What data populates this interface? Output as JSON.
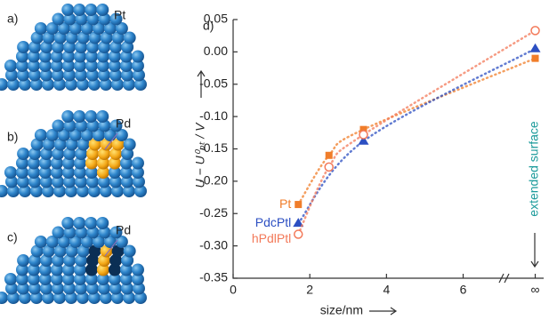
{
  "panels": {
    "a": "a)",
    "b": "b)",
    "c": "c)",
    "d": "d)",
    "a_label": "Pt",
    "b_label": "Pd",
    "c_label": "Pd"
  },
  "chart_data": {
    "type": "line",
    "y_label": "U − U⁰ₚₜ / V",
    "x_label": "size/nm",
    "annotation": "extended surface",
    "xlim": [
      0,
      8.1
    ],
    "ylim": [
      -0.35,
      0.05
    ],
    "xticks": [
      0,
      2,
      4,
      6,
      {
        "value": 7.88,
        "label": "∞"
      }
    ],
    "yticks": [
      {
        "value": 0.05,
        "label": "0.05"
      },
      {
        "value": 0,
        "label": "0.00"
      },
      {
        "value": -0.05,
        "label": "-0.05"
      },
      {
        "value": -0.1,
        "label": "-0.10"
      },
      {
        "value": -0.15,
        "label": "-0.15"
      },
      {
        "value": -0.2,
        "label": "-0.20"
      },
      {
        "value": -0.25,
        "label": "-0.25"
      },
      {
        "value": -0.3,
        "label": "-0.30"
      },
      {
        "value": -0.35,
        "label": "-0.35"
      }
    ],
    "series": [
      {
        "name": "Pt",
        "color": "#f07d2a",
        "marker": "square",
        "x": [
          1.7,
          2.5,
          3.4,
          7.88
        ],
        "values": [
          -0.236,
          -0.16,
          -0.12,
          -0.01
        ]
      },
      {
        "name": "PdcPtl",
        "color": "#2c4fc2",
        "marker": "triangle",
        "x": [
          1.7,
          3.4,
          7.88
        ],
        "values": [
          -0.265,
          -0.138,
          0.005
        ]
      },
      {
        "name": "hPdlPtl",
        "color": "#f37a5a",
        "marker": "circle",
        "x": [
          1.7,
          2.5,
          3.4,
          7.88
        ],
        "values": [
          -0.282,
          -0.178,
          -0.128,
          0.033
        ]
      }
    ]
  }
}
